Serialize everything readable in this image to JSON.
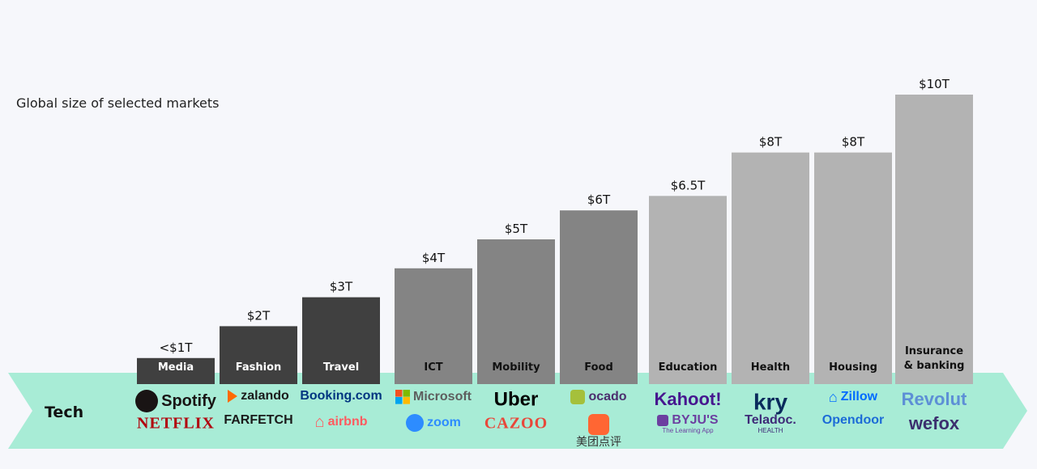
{
  "chart_data": {
    "type": "bar",
    "title": "Global size of selected markets",
    "unit": "trillion USD",
    "categories": [
      "Media",
      "Fashion",
      "Travel",
      "ICT",
      "Mobility",
      "Food",
      "Education",
      "Health",
      "Housing",
      "Insurance\n& banking"
    ],
    "values": [
      0.9,
      2,
      3,
      4,
      5,
      6,
      6.5,
      8,
      8,
      10
    ],
    "value_labels": [
      "<$1T",
      "$2T",
      "$3T",
      "$4T",
      "$5T",
      "$6T",
      "$6.5T",
      "$8T",
      "$8T",
      "$10T"
    ],
    "bar_colors": [
      "#404040",
      "#404040",
      "#404040",
      "#848484",
      "#848484",
      "#848484",
      "#b3b3b3",
      "#b3b3b3",
      "#b3b3b3",
      "#b3b3b3"
    ],
    "label_colors": [
      "#ffffff",
      "#ffffff",
      "#ffffff",
      "#111111",
      "#111111",
      "#111111",
      "#111111",
      "#111111",
      "#111111",
      "#111111"
    ],
    "ylim": [
      0,
      10
    ]
  },
  "tech_band": {
    "label": "Tech",
    "color": "#a8ecd6"
  },
  "logos": [
    [
      {
        "text": "Spotify",
        "icon": "spotify-icon",
        "color": "#191414"
      },
      {
        "text": "NETFLIX",
        "color": "#b1060f"
      }
    ],
    [
      {
        "text": "zalando",
        "icon": "zalando-icon",
        "color": "#1a1a1a"
      },
      {
        "text": "FARFETCH",
        "color": "#1a1a1a"
      }
    ],
    [
      {
        "text": "Booking.com",
        "color": "#003580"
      },
      {
        "text": "airbnb",
        "icon": "airbnb-icon",
        "color": "#ff5a5f"
      }
    ],
    [
      {
        "text": "Microsoft",
        "icon": "microsoft-icon",
        "color": "#5e5e5e"
      },
      {
        "text": "zoom",
        "icon": "zoom-icon",
        "color": "#2d8cff"
      }
    ],
    [
      {
        "text": "Uber",
        "color": "#000000"
      },
      {
        "text": "CAZOO",
        "color": "#e8473a"
      }
    ],
    [
      {
        "text": "ocado",
        "icon": "ocado-icon",
        "color": "#4b2e6e"
      },
      {
        "text": "美团点评",
        "icon": "meituan-dianping-icon",
        "color": "#333333"
      }
    ],
    [
      {
        "text": "Kahoot!",
        "color": "#46178f"
      },
      {
        "text": "BYJU'S",
        "icon": "byjus-icon",
        "color": "#6c3fa0",
        "sub": "The Learning App"
      }
    ],
    [
      {
        "text": "kry",
        "color": "#0b2b5c"
      },
      {
        "text": "Teladoc.",
        "color": "#3e2a78",
        "sub": "HEALTH"
      }
    ],
    [
      {
        "text": "Zillow",
        "icon": "zillow-icon",
        "color": "#006aff"
      },
      {
        "text": "Opendoor",
        "color": "#1c6bd7"
      }
    ],
    [
      {
        "text": "Revolut",
        "color": "#5d8fd6"
      },
      {
        "text": "wefox",
        "color": "#3c2f6e"
      }
    ]
  ]
}
